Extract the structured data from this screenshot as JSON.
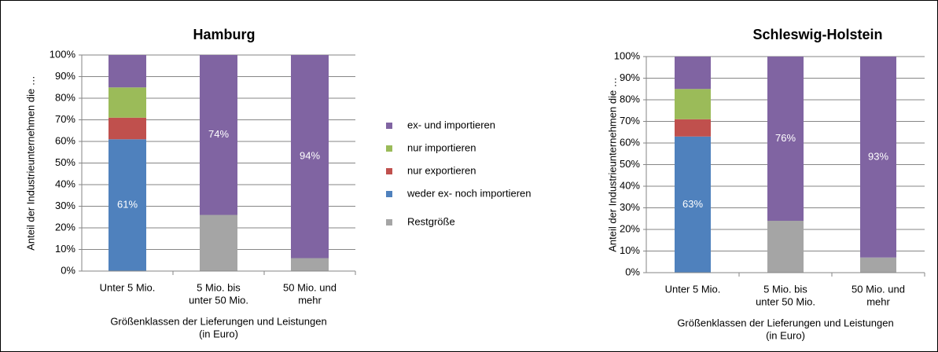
{
  "legend": [
    {
      "name": "ex- und importieren",
      "color": "#8064a2"
    },
    {
      "name": "nur importieren",
      "color": "#9bbb59"
    },
    {
      "name": "nur exportieren",
      "color": "#c0504d"
    },
    {
      "name": "weder ex- noch importieren",
      "color": "#4f81bd"
    },
    {
      "name": "Restgröße",
      "color": "#a5a5a5"
    }
  ],
  "chart_data": [
    {
      "type": "stacked_bar",
      "title": "Hamburg",
      "y_label": "Anteil der Industrieunternehmen die …",
      "x_label": [
        "Größenklassen der Lieferungen und Leistungen",
        "(in Euro)"
      ],
      "categories": [
        [
          "Unter 5 Mio."
        ],
        [
          "5 Mio. bis",
          "unter 50 Mio."
        ],
        [
          "50 Mio. und",
          "mehr"
        ]
      ],
      "ylim": [
        0,
        100
      ],
      "yticks": [
        {
          "value": 0,
          "label": "0%"
        },
        {
          "value": 10,
          "label": "10%"
        },
        {
          "value": 20,
          "label": "20%"
        },
        {
          "value": 30,
          "label": "30%"
        },
        {
          "value": 40,
          "label": "40%"
        },
        {
          "value": 50,
          "label": "50%"
        },
        {
          "value": 60,
          "label": "60%"
        },
        {
          "value": 70,
          "label": "70%"
        },
        {
          "value": 80,
          "label": "80%"
        },
        {
          "value": 90,
          "label": "90%"
        },
        {
          "value": 100,
          "label": "100%"
        }
      ],
      "series": [
        {
          "values": [
            15,
            74,
            94
          ],
          "value_labels": [
            null,
            "74%",
            "94%"
          ]
        },
        {
          "values": [
            14,
            0,
            0
          ]
        },
        {
          "values": [
            10,
            0,
            0
          ]
        },
        {
          "values": [
            61,
            0,
            0
          ],
          "value_labels": [
            "61%",
            null,
            null
          ]
        },
        {
          "values": [
            0,
            26,
            6
          ]
        }
      ]
    },
    {
      "type": "stacked_bar",
      "title": "Schleswig-Holstein",
      "y_label": "Anteil der Industrieunternehmen die …",
      "x_label": [
        "Größenklassen der Lieferungen und Leistungen",
        "(in Euro)"
      ],
      "categories": [
        [
          "Unter 5 Mio."
        ],
        [
          "5 Mio. bis",
          "unter 50 Mio."
        ],
        [
          "50 Mio. und",
          "mehr"
        ]
      ],
      "ylim": [
        0,
        100
      ],
      "yticks": [
        {
          "value": 0,
          "label": "0%"
        },
        {
          "value": 10,
          "label": "10%"
        },
        {
          "value": 20,
          "label": "20%"
        },
        {
          "value": 30,
          "label": "30%"
        },
        {
          "value": 40,
          "label": "40%"
        },
        {
          "value": 50,
          "label": "50%"
        },
        {
          "value": 60,
          "label": "60%"
        },
        {
          "value": 70,
          "label": "70%"
        },
        {
          "value": 80,
          "label": "80%"
        },
        {
          "value": 90,
          "label": "90%"
        },
        {
          "value": 100,
          "label": "100%"
        }
      ],
      "series": [
        {
          "values": [
            15,
            76,
            93
          ],
          "value_labels": [
            null,
            "76%",
            "93%"
          ]
        },
        {
          "values": [
            14,
            0,
            0
          ]
        },
        {
          "values": [
            8,
            0,
            0
          ]
        },
        {
          "values": [
            63,
            0,
            0
          ],
          "value_labels": [
            "63%",
            null,
            null
          ]
        },
        {
          "values": [
            0,
            24,
            7
          ]
        }
      ]
    }
  ]
}
